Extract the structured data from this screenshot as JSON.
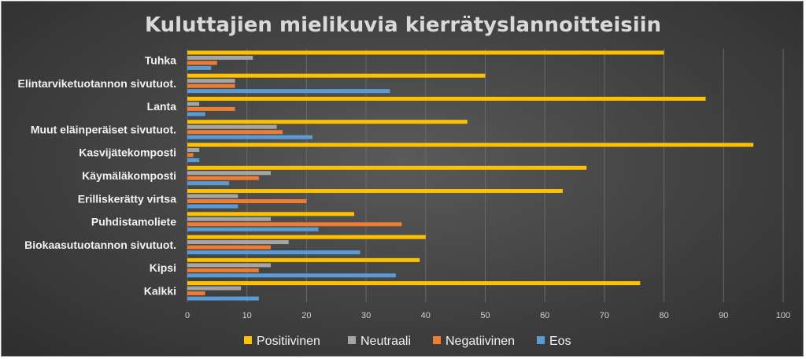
{
  "chart_data": {
    "type": "bar",
    "orientation": "horizontal",
    "title": "Kuluttajien mielikuvia kierrätyslannoitteisiin",
    "categories": [
      "Tuhka",
      "Elintarviketuotannon sivutuot.",
      "Lanta",
      "Muut eläinperäiset sivutuot.",
      "Kasvijätekomposti",
      "Käymäläkomposti",
      "Erilliskerätty virtsa",
      "Puhdistamoliete",
      "Biokaasutuotannon sivutuot.",
      "Kipsi",
      "Kalkki"
    ],
    "series": [
      {
        "name": "Positiivinen",
        "color": "#ffc000",
        "values": [
          80,
          50,
          87,
          47,
          95,
          67,
          63,
          28,
          40,
          39,
          76
        ]
      },
      {
        "name": "Neutraali",
        "color": "#a5a5a5",
        "values": [
          11,
          8,
          2,
          15,
          2,
          14,
          8.5,
          14,
          17,
          14,
          9
        ]
      },
      {
        "name": "Negatiivinen",
        "color": "#ed7d31",
        "values": [
          5,
          8,
          8,
          16,
          1,
          12,
          20,
          36,
          14,
          12,
          3
        ]
      },
      {
        "name": "Eos",
        "color": "#5b9bd5",
        "values": [
          4,
          34,
          3,
          21,
          2,
          7,
          8.5,
          22,
          29,
          35,
          12
        ]
      }
    ],
    "xlim": [
      0,
      100
    ],
    "xticks": [
      "0",
      "10",
      "20",
      "30",
      "40",
      "50",
      "60",
      "70",
      "80",
      "90",
      "100"
    ],
    "grid": true,
    "legend_position": "bottom"
  }
}
